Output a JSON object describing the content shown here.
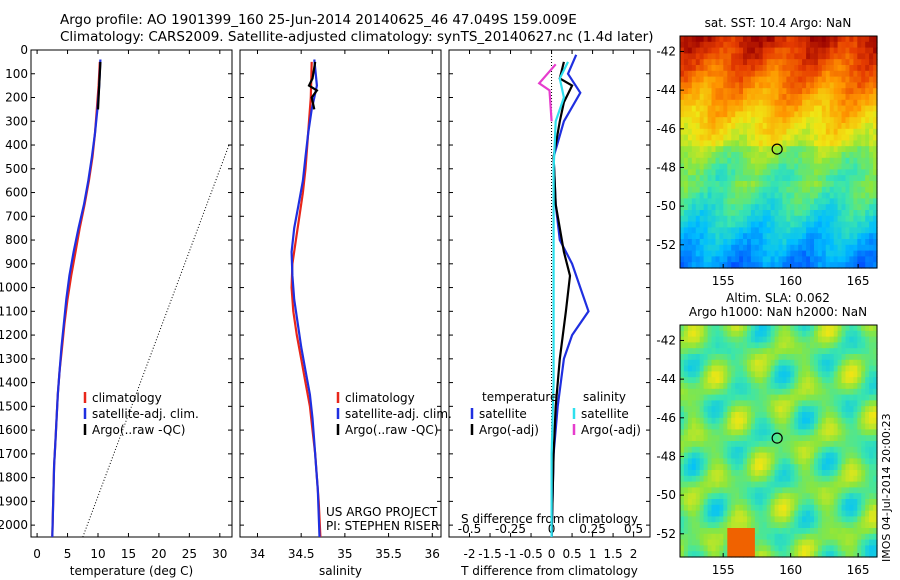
{
  "header": {
    "line1": "Argo profile: AO 1901399_160 25-Jun-2014 20140625_46 47.049S 159.009E",
    "line2": "Climatology: CARS2009. Satellite-adjusted climatology: synTS_20140627.nc (1.4d later)"
  },
  "colors": {
    "climatology": "#e8261a",
    "satellite": "#1f2fe0",
    "argo": "#000000",
    "argo_s_adj": "#e63ccd",
    "sat_s": "#2ee0ee"
  },
  "chart_data": [
    {
      "type": "line",
      "id": "temperature",
      "xlabel": "temperature (deg C)",
      "ylabel": "",
      "xlim": [
        -1,
        32
      ],
      "ylim": [
        2050,
        0
      ],
      "xticks": [
        0,
        5,
        10,
        15,
        20,
        25,
        30
      ],
      "yticks": [
        0,
        100,
        200,
        300,
        400,
        500,
        600,
        700,
        800,
        900,
        1000,
        1100,
        1200,
        1300,
        1400,
        1500,
        1600,
        1700,
        1800,
        1900,
        2000
      ],
      "legend": [
        "climatology",
        "satellite-adj. clim.",
        "Argo(..raw -QC)"
      ],
      "series": [
        {
          "name": "climatology",
          "color": "#e8261a",
          "points": [
            [
              10.3,
              50
            ],
            [
              10.1,
              150
            ],
            [
              9.8,
              250
            ],
            [
              9.5,
              350
            ],
            [
              9.1,
              450
            ],
            [
              8.5,
              550
            ],
            [
              7.8,
              650
            ],
            [
              7.0,
              750
            ],
            [
              6.3,
              850
            ],
            [
              5.6,
              950
            ],
            [
              5.0,
              1050
            ],
            [
              4.5,
              1150
            ],
            [
              4.1,
              1250
            ],
            [
              3.7,
              1350
            ],
            [
              3.4,
              1450
            ],
            [
              3.2,
              1550
            ],
            [
              3.0,
              1650
            ],
            [
              2.8,
              1750
            ],
            [
              2.7,
              1850
            ],
            [
              2.6,
              1950
            ],
            [
              2.5,
              2050
            ]
          ]
        },
        {
          "name": "satellite-adj. clim.",
          "color": "#1f2fe0",
          "points": [
            [
              10.4,
              40
            ],
            [
              10.2,
              150
            ],
            [
              9.9,
              250
            ],
            [
              9.5,
              350
            ],
            [
              9.0,
              450
            ],
            [
              8.4,
              550
            ],
            [
              7.7,
              650
            ],
            [
              6.8,
              750
            ],
            [
              6.0,
              850
            ],
            [
              5.3,
              950
            ],
            [
              4.8,
              1050
            ],
            [
              4.4,
              1150
            ],
            [
              4.0,
              1250
            ],
            [
              3.7,
              1350
            ],
            [
              3.4,
              1450
            ],
            [
              3.2,
              1550
            ],
            [
              3.0,
              1650
            ],
            [
              2.8,
              1750
            ],
            [
              2.7,
              1850
            ],
            [
              2.6,
              1950
            ],
            [
              2.5,
              2050
            ]
          ]
        },
        {
          "name": "Argo(..raw -QC)",
          "color": "#000000",
          "points": [
            [
              10.4,
              50
            ],
            [
              10.3,
              100
            ],
            [
              10.2,
              150
            ],
            [
              10.1,
              200
            ],
            [
              10.0,
              250
            ]
          ]
        },
        {
          "name": "",
          "color": "#000000",
          "dotted": true,
          "points": [
            [
              7.5,
              2050
            ],
            [
              31.5,
              400
            ]
          ]
        }
      ]
    },
    {
      "type": "line",
      "id": "salinity",
      "xlabel": "salinity",
      "ylabel": "",
      "xlim": [
        33.8,
        36.1
      ],
      "ylim": [
        2050,
        0
      ],
      "xticks": [
        34,
        34.5,
        35,
        35.5,
        36
      ],
      "legend": [
        "climatology",
        "satellite-adj. clim.",
        "Argo(..raw -QC)"
      ],
      "annotations": [
        "US ARGO PROJECT",
        "PI: STEPHEN RISER"
      ],
      "series": [
        {
          "name": "climatology",
          "color": "#e8261a",
          "points": [
            [
              34.62,
              50
            ],
            [
              34.61,
              200
            ],
            [
              34.59,
              300
            ],
            [
              34.57,
              400
            ],
            [
              34.55,
              500
            ],
            [
              34.52,
              600
            ],
            [
              34.48,
              700
            ],
            [
              34.44,
              800
            ],
            [
              34.4,
              900
            ],
            [
              34.39,
              1000
            ],
            [
              34.41,
              1100
            ],
            [
              34.45,
              1200
            ],
            [
              34.5,
              1300
            ],
            [
              34.55,
              1400
            ],
            [
              34.6,
              1500
            ],
            [
              34.63,
              1600
            ],
            [
              34.66,
              1700
            ],
            [
              34.68,
              1800
            ],
            [
              34.7,
              1900
            ],
            [
              34.72,
              2050
            ]
          ]
        },
        {
          "name": "satellite-adj. clim.",
          "color": "#1f2fe0",
          "points": [
            [
              34.65,
              40
            ],
            [
              34.68,
              150
            ],
            [
              34.62,
              250
            ],
            [
              34.58,
              350
            ],
            [
              34.55,
              450
            ],
            [
              34.52,
              550
            ],
            [
              34.47,
              650
            ],
            [
              34.42,
              750
            ],
            [
              34.39,
              850
            ],
            [
              34.4,
              950
            ],
            [
              34.42,
              1050
            ],
            [
              34.46,
              1150
            ],
            [
              34.5,
              1250
            ],
            [
              34.55,
              1350
            ],
            [
              34.6,
              1450
            ],
            [
              34.63,
              1550
            ],
            [
              34.65,
              1650
            ],
            [
              34.67,
              1750
            ],
            [
              34.69,
              1850
            ],
            [
              34.71,
              2050
            ]
          ]
        },
        {
          "name": "Argo(..raw -QC)",
          "color": "#000000",
          "points": [
            [
              34.66,
              50
            ],
            [
              34.63,
              120
            ],
            [
              34.59,
              150
            ],
            [
              34.68,
              170
            ],
            [
              34.62,
              200
            ],
            [
              34.65,
              250
            ]
          ]
        }
      ]
    },
    {
      "type": "line",
      "id": "difference",
      "xlabel": "T difference from climatology",
      "xlabel2": "S difference from climatology",
      "xlim": [
        -2.5,
        2.4
      ],
      "ylim": [
        2050,
        0
      ],
      "xticks": [
        -2,
        -1.5,
        -1,
        -0.5,
        0,
        0.5,
        1,
        1.5,
        2
      ],
      "xtick_labels": [
        "-2",
        "-1.5",
        "-1",
        "-0.5",
        "0",
        "0.5",
        "1",
        "1.5",
        "2"
      ],
      "xticks2": [
        -0.5,
        -0.25,
        0,
        0.25,
        0.5
      ],
      "xtick2_labels": [
        "-0.5",
        "-0.25",
        "0",
        "0.25",
        "0.5"
      ],
      "legend_temperature_title": "temperature",
      "legend_salinity_title": "salinity",
      "legend_temperature": [
        "satellite",
        "Argo(-adj)"
      ],
      "legend_salinity": [
        "satellite",
        "Argo(-adj)"
      ],
      "series": [
        {
          "name": "T satellite",
          "color": "#1f2fe0",
          "points": [
            [
              0.6,
              20
            ],
            [
              0.4,
              100
            ],
            [
              0.7,
              180
            ],
            [
              0.3,
              300
            ],
            [
              0.05,
              450
            ],
            [
              0.1,
              650
            ],
            [
              0.2,
              800
            ],
            [
              0.5,
              900
            ],
            [
              0.7,
              1000
            ],
            [
              0.9,
              1100
            ],
            [
              0.5,
              1200
            ],
            [
              0.3,
              1300
            ],
            [
              0.15,
              1500
            ],
            [
              0.05,
              1700
            ],
            [
              0.0,
              2050
            ]
          ]
        },
        {
          "name": "T Argo(-adj)",
          "color": "#000000",
          "points": [
            [
              0.3,
              50
            ],
            [
              0.2,
              120
            ],
            [
              0.5,
              150
            ],
            [
              0.3,
              220
            ],
            [
              0.2,
              300
            ],
            [
              0.05,
              450
            ],
            [
              0.1,
              650
            ],
            [
              0.3,
              850
            ],
            [
              0.45,
              950
            ],
            [
              0.35,
              1100
            ],
            [
              0.2,
              1300
            ],
            [
              0.1,
              1500
            ],
            [
              0.05,
              1700
            ],
            [
              0.0,
              2050
            ]
          ]
        },
        {
          "name": "S satellite",
          "color": "#2ee0ee",
          "points": [
            [
              0.4,
              50
            ],
            [
              0.2,
              120
            ],
            [
              0.3,
              200
            ],
            [
              0.1,
              300
            ],
            [
              0.05,
              500
            ],
            [
              0.05,
              800
            ],
            [
              0.05,
              1100
            ],
            [
              0.05,
              1400
            ],
            [
              0.0,
              1700
            ],
            [
              0.0,
              2050
            ]
          ]
        },
        {
          "name": "S Argo(-adj)",
          "color": "#e63ccd",
          "points": [
            [
              0.1,
              60
            ],
            [
              -0.3,
              140
            ],
            [
              -0.05,
              170
            ],
            [
              0.0,
              300
            ]
          ]
        }
      ]
    },
    {
      "type": "heatmap",
      "id": "sst_map",
      "title": "sat. SST: 10.4 Argo: NaN",
      "xticks": [
        155,
        160,
        165
      ],
      "yticks": [
        -42,
        -44,
        -46,
        -48,
        -50,
        -52
      ],
      "xlim": [
        151.8,
        166.4
      ],
      "ylim": [
        -53.2,
        -41.2
      ],
      "marker": [
        159.0,
        -47.05
      ]
    },
    {
      "type": "heatmap",
      "id": "sla_map",
      "title": "Altim. SLA: 0.062",
      "subtitle": "Argo h1000: NaN h2000: NaN",
      "xticks": [
        155,
        160,
        165
      ],
      "yticks": [
        -42,
        -44,
        -46,
        -48,
        -50,
        -52
      ],
      "xlim": [
        151.8,
        166.4
      ],
      "ylim": [
        -53.2,
        -41.2
      ],
      "marker": [
        159.0,
        -47.05
      ]
    }
  ],
  "side_text": "IMOS 04-Jul-2014 20:00:23"
}
